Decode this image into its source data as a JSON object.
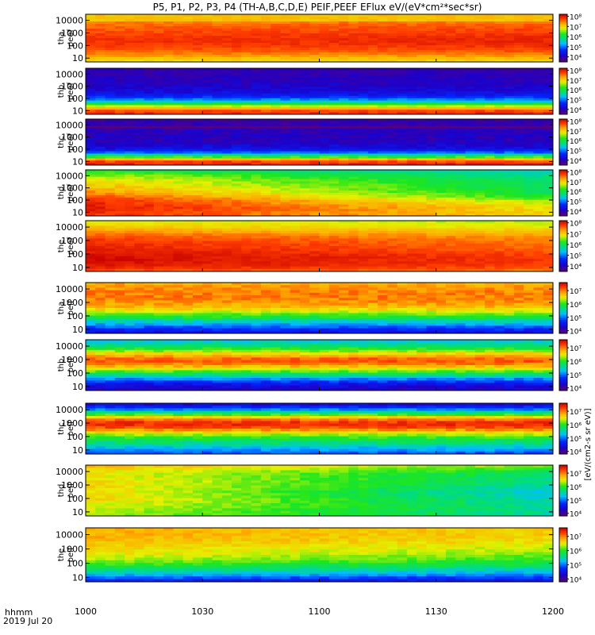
{
  "chart_data": {
    "type": "heatmap",
    "title": "P5, P1, P2, P3, P4 (TH-A,B,C,D,E) PEIF,PEEF EFlux eV/(eV*cm²*sec*sr)",
    "x_corner_label": "hhmm",
    "date_label": "2019 Jul 20",
    "x_ticks": [
      "1000",
      "1030",
      "1100",
      "1130",
      "1200"
    ],
    "x_range_minutes": [
      600,
      720
    ],
    "y_ticks": [
      "10",
      "100",
      "1000",
      "10000"
    ],
    "y_range": [
      5,
      30000
    ],
    "colorbar_label": "[eV/(cm2-s sr eV)]",
    "colorbar_scale": "log",
    "panels": [
      {
        "name": "tha_peef",
        "line1": "tha",
        "line2": "peef",
        "cb_ticks": [
          "10⁴",
          "10⁵",
          "10⁶",
          "10⁷",
          "10⁸"
        ],
        "cb_range": [
          3.5,
          8.2
        ],
        "profile": [
          6.8,
          7.2,
          7.5,
          7.7,
          7.8,
          7.8,
          7.7,
          7.6,
          7.5,
          7.3,
          7.0
        ],
        "gradient": 0.1,
        "edge": 0.6,
        "noise": 0.2,
        "stripes": []
      },
      {
        "name": "thb_peef",
        "line1": "thb",
        "line2": "peef",
        "cb_ticks": [
          "10⁴",
          "10⁵",
          "10⁶",
          "10⁷",
          "10⁸"
        ],
        "cb_range": [
          3.5,
          8.2
        ],
        "profile": [
          7.9,
          7.6,
          6.4,
          5.2,
          4.5,
          4.2,
          4.1,
          4.0,
          4.0,
          3.9,
          3.9
        ],
        "gradient": 0,
        "edge": 0,
        "noise": 0.3,
        "stripes": [
          {
            "pos": 0.12,
            "val": 7.2,
            "width": 0.03
          }
        ]
      },
      {
        "name": "thc_peef",
        "line1": "thc",
        "line2": "peef",
        "cb_ticks": [
          "10⁴",
          "10⁵",
          "10⁶",
          "10⁷",
          "10⁸"
        ],
        "cb_range": [
          3.5,
          8.2
        ],
        "profile": [
          8.0,
          7.6,
          5.9,
          4.6,
          4.2,
          4.0,
          4.0,
          4.0,
          3.9,
          3.9,
          3.8
        ],
        "gradient": 0,
        "edge": 0,
        "noise": 0.35,
        "stripes": [
          {
            "pos": 0.83,
            "val": 3.5,
            "width": 0.03
          }
        ]
      },
      {
        "name": "thd_peef",
        "line1": "thd",
        "line2": "peef",
        "cb_ticks": [
          "10⁴",
          "10⁵",
          "10⁶",
          "10⁷",
          "10⁸"
        ],
        "cb_range": [
          3.5,
          8.2
        ],
        "profile": [
          7.8,
          7.9,
          8.0,
          7.9,
          7.7,
          7.4,
          7.2,
          7.0,
          6.8,
          6.5,
          6.1
        ],
        "gradient": -1.5,
        "edge": 0.55,
        "noise": 0.3,
        "stripes": []
      },
      {
        "name": "the_peef",
        "line1": "the",
        "line2": "peef",
        "cb_ticks": [
          "10⁴",
          "10⁵",
          "10⁶",
          "10⁷",
          "10⁸"
        ],
        "cb_range": [
          3.5,
          8.2
        ],
        "profile": [
          7.6,
          8.0,
          8.1,
          8.1,
          8.0,
          7.9,
          7.8,
          7.6,
          7.3,
          7.0,
          6.8
        ],
        "gradient": -0.4,
        "edge": 0.6,
        "noise": 0.2,
        "stripes": []
      },
      {
        "name": "tha_peif",
        "line1": "tha",
        "line2": "peif",
        "cb_ticks": [
          "10⁴",
          "10⁵",
          "10⁶",
          "10⁷"
        ],
        "cb_range": [
          3.8,
          7.6
        ],
        "profile": [
          4.4,
          4.8,
          5.3,
          5.8,
          6.3,
          6.7,
          6.9,
          7.0,
          7.0,
          6.9,
          6.8
        ],
        "gradient": 0,
        "edge": 0,
        "noise": 0.3,
        "stripes": []
      },
      {
        "name": "thb_peif",
        "line1": "thb",
        "line2": "peif",
        "cb_ticks": [
          "10⁴",
          "10⁵",
          "10⁶",
          "10⁷"
        ],
        "cb_range": [
          3.8,
          7.6
        ],
        "profile": [
          4.2,
          4.4,
          4.9,
          5.6,
          6.3,
          6.9,
          7.2,
          6.7,
          6.1,
          5.6,
          5.3
        ],
        "gradient": 0,
        "edge": 0,
        "noise": 0.3,
        "stripes": []
      },
      {
        "name": "thc_peif",
        "line1": "thc",
        "line2": "peif",
        "cb_ticks": [
          "10⁴",
          "10⁵",
          "10⁶",
          "10⁷"
        ],
        "cb_range": [
          3.8,
          7.6
        ],
        "profile": [
          4.8,
          5.2,
          5.6,
          5.9,
          6.4,
          7.1,
          7.4,
          6.9,
          5.8,
          4.8,
          4.3
        ],
        "gradient": 0,
        "edge": 0,
        "noise": 0.3,
        "stripes": []
      },
      {
        "name": "thd_peif",
        "line1": "thd",
        "line2": "peif",
        "cb_ticks": [
          "10⁴",
          "10⁵",
          "10⁶",
          "10⁷"
        ],
        "cb_range": [
          3.8,
          7.6
        ],
        "profile": [
          6.3,
          6.4,
          6.5,
          6.6,
          6.6,
          6.6,
          6.6,
          6.6,
          6.5,
          6.6,
          6.8
        ],
        "gradient": -1.3,
        "edge": 0,
        "noise": 0.25,
        "stripes": []
      },
      {
        "name": "the_peif",
        "line1": "the",
        "line2": "peif",
        "cb_ticks": [
          "10⁴",
          "10⁵",
          "10⁶",
          "10⁷"
        ],
        "cb_range": [
          3.8,
          7.6
        ],
        "profile": [
          4.6,
          5.1,
          5.6,
          6.0,
          6.3,
          6.5,
          6.6,
          6.7,
          6.8,
          6.8,
          6.8
        ],
        "gradient": -0.3,
        "edge": 0,
        "noise": 0.25,
        "stripes": []
      }
    ]
  }
}
